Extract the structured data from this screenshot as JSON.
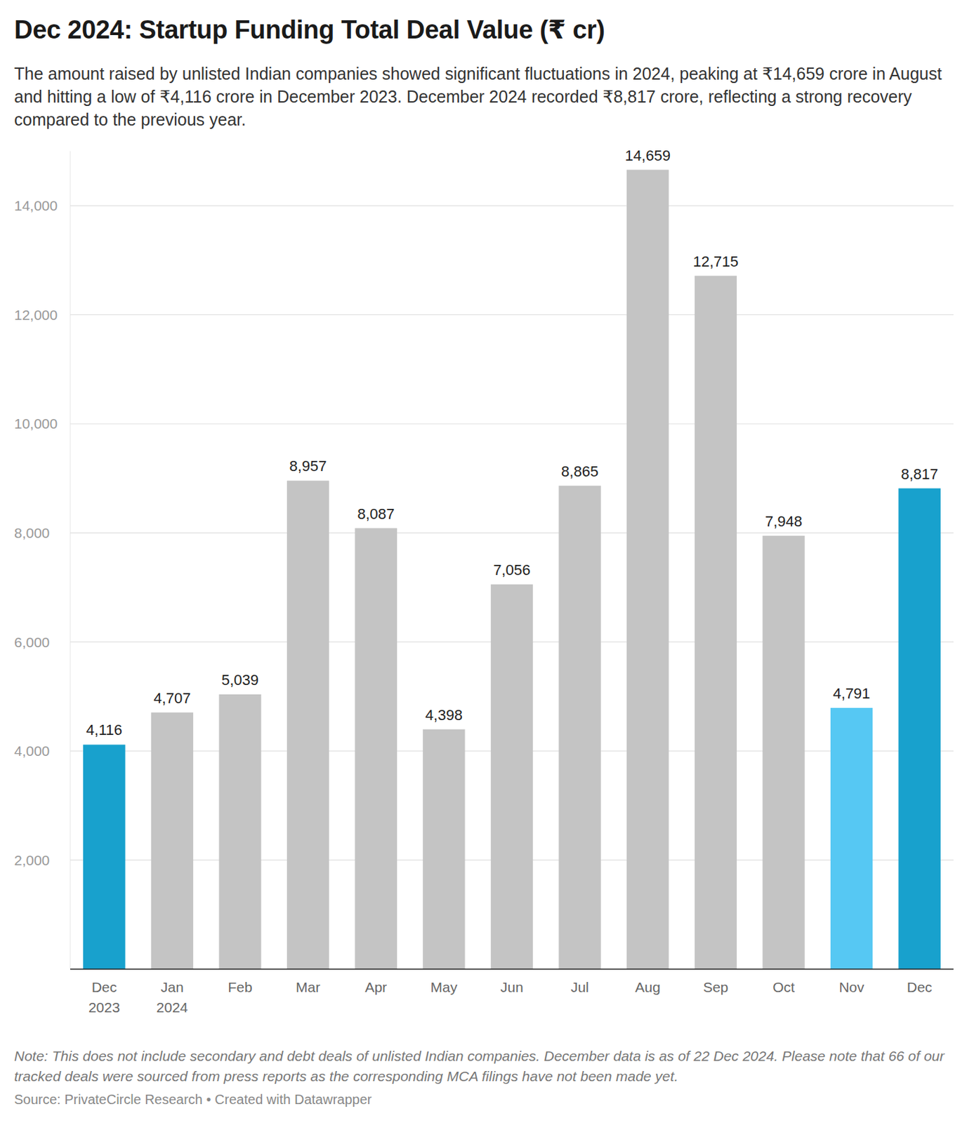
{
  "chart_data": {
    "type": "bar",
    "title": "Dec 2024: Startup Funding Total Deal Value (₹ cr)",
    "subtitle": "The amount raised by unlisted Indian companies showed significant fluctuations in 2024, peaking at ₹14,659 crore in August and hitting a low of ₹4,116 crore in December 2023. December 2024 recorded ₹8,817 crore, reflecting a strong recovery compared to the previous year.",
    "note": "Note: This does not include secondary and debt deals of unlisted Indian companies. December data is as of 22 Dec 2024. Please note that 66 of our tracked deals were sourced from press reports as the corresponding MCA filings have not been made yet.",
    "source": "Source: PrivateCircle Research • Created with Datawrapper",
    "categories": [
      "Dec 2023",
      "Jan 2024",
      "Feb",
      "Mar",
      "Apr",
      "May",
      "Jun",
      "Jul",
      "Aug",
      "Sep",
      "Oct",
      "Nov",
      "Dec"
    ],
    "values": [
      4116,
      4707,
      5039,
      8957,
      8087,
      4398,
      7056,
      8865,
      14659,
      12715,
      7948,
      4791,
      8817
    ],
    "value_labels": [
      "4,116",
      "4,707",
      "5,039",
      "8,957",
      "8,087",
      "4,398",
      "7,056",
      "8,865",
      "14,659",
      "12,715",
      "7,948",
      "4,791",
      "8,817"
    ],
    "colors": [
      "#18a1cd",
      "#c4c4c4",
      "#c4c4c4",
      "#c4c4c4",
      "#c4c4c4",
      "#c4c4c4",
      "#c4c4c4",
      "#c4c4c4",
      "#c4c4c4",
      "#c4c4c4",
      "#c4c4c4",
      "#56c8f3",
      "#18a1cd"
    ],
    "ylim": [
      0,
      15000
    ],
    "yticks": [
      {
        "value": 2000,
        "label": "2,000"
      },
      {
        "value": 4000,
        "label": "4,000"
      },
      {
        "value": 6000,
        "label": "6,000"
      },
      {
        "value": 8000,
        "label": "8,000"
      },
      {
        "value": 10000,
        "label": "10,000"
      },
      {
        "value": 12000,
        "label": "12,000"
      },
      {
        "value": 14000,
        "label": "14,000"
      }
    ],
    "grid": true,
    "data_labels": true
  }
}
